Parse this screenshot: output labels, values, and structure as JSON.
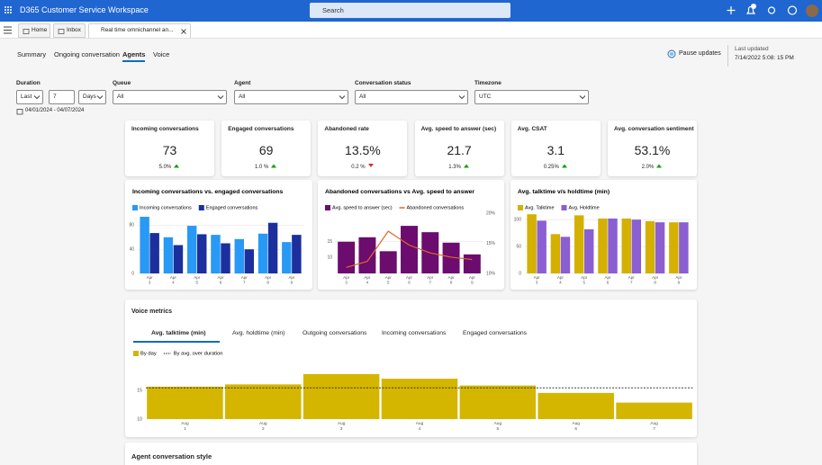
{
  "app": {
    "title": "D365 Customer Service Workspace",
    "search": "Search"
  },
  "tabs": [
    "Home",
    "Inbox",
    "Real time omnichannel an..."
  ],
  "nav": {
    "items": [
      "Summary",
      "Ongoing conversation",
      "Agents",
      "Voice"
    ],
    "active": 2
  },
  "status": {
    "pause": "Pause updates",
    "last_updated_label": "Last updated",
    "last_updated": "7/14/2022 5:08: 15 PM"
  },
  "filters": {
    "duration": {
      "label": "Duration",
      "mode": "Last",
      "count": "7",
      "unit": "Days"
    },
    "dropdowns": [
      {
        "label": "Queue",
        "value": "All"
      },
      {
        "label": "Agent",
        "value": "All"
      },
      {
        "label": "Conversation status",
        "value": "All"
      },
      {
        "label": "Timezone",
        "value": "UTC"
      }
    ],
    "date_range": "04/01/2024 - 04/07/2024"
  },
  "kpis": [
    {
      "title": "Incoming conversations",
      "value": "73",
      "change": "5.0%",
      "trend": "up"
    },
    {
      "title": "Engaged conversations",
      "value": "69",
      "change": "1.0 %",
      "trend": "up"
    },
    {
      "title": "Abandoned rate",
      "value": "13.5%",
      "change": "0.2 %",
      "trend": "down"
    },
    {
      "title": "Avg. speed to answer (sec)",
      "value": "21.7",
      "change": "1.3%",
      "trend": "up"
    },
    {
      "title": "Avg. CSAT",
      "value": "3.1",
      "change": "0.25%",
      "trend": "up"
    },
    {
      "title": "Avg. conversation sentiment",
      "value": "53.1%",
      "change": "2.0%",
      "trend": "up"
    }
  ],
  "charts": [
    {
      "type": "bar",
      "title": "Incoming conversations  vs. engaged conversations",
      "categories": [
        "Apr 3",
        "Apr 4",
        "Apr 5",
        "Apr 6",
        "Apr 7",
        "Apr 8",
        "Apr 9"
      ],
      "series": [
        {
          "name": "Incoming conversations",
          "color": "#2899f5",
          "values": [
            94,
            60,
            79,
            64,
            57,
            66,
            52
          ]
        },
        {
          "name": "Engaged conversations",
          "color": "#1c2f9e",
          "values": [
            67,
            47,
            65,
            50,
            40,
            84,
            64
          ]
        }
      ],
      "ylim": [
        0,
        100
      ],
      "yticks": [
        0,
        40,
        80
      ],
      "grid": true
    },
    {
      "type": "combo",
      "title": "Abandoned conversations vs Avg. speed to answer",
      "categories": [
        "Apr 3",
        "Apr 4",
        "Apr 5",
        "Apr 6",
        "Apr 7",
        "Apr 8",
        "Apr 9"
      ],
      "series": [
        {
          "name": "Avg. speed to answer (sec)",
          "color": "#6b0c6e",
          "values": [
            15,
            16.4,
            12,
            20,
            18,
            14.7,
            11
          ]
        },
        {
          "name": "Abandoned conversations",
          "color": "#e0682a",
          "axis": "y2",
          "values": [
            11,
            12,
            17,
            14.7,
            13.4,
            12.7,
            12.3
          ]
        }
      ],
      "ylim": [
        5,
        24
      ],
      "yticks": [
        10,
        15
      ],
      "y2lim": [
        10,
        20
      ],
      "y2ticks": [
        {
          "value": 10,
          "label": "10%"
        },
        {
          "value": 15,
          "label": "15%"
        },
        {
          "value": 20,
          "label": "20%"
        }
      ],
      "grid": true
    },
    {
      "type": "bar",
      "title": "Avg. talktime v/s holdtime (min)",
      "categories": [
        "Apr 3",
        "Apr 4",
        "Apr 5",
        "Apr 6",
        "Apr 7",
        "Apr 8",
        "Apr 9"
      ],
      "series": [
        {
          "name": "Avg. Talktime",
          "color": "#d4b000",
          "values": [
            110,
            73,
            108,
            102,
            102,
            97,
            95
          ]
        },
        {
          "name": "Avg. Holdtime",
          "color": "#8a5fd1",
          "values": [
            98,
            68,
            82,
            102,
            100,
            95,
            95
          ]
        }
      ],
      "ylim": [
        0,
        112
      ],
      "yticks": [
        0,
        50,
        100
      ],
      "grid": true
    }
  ],
  "voice": {
    "title": "Voice metrics",
    "tabs": [
      "Avg. talktime (min)",
      "Avg. holdtime (min)",
      "Outgoing conversations",
      "Incoming conversations",
      "Engaged conversations"
    ],
    "active": 0,
    "chart": {
      "type": "bar",
      "categories": [
        "Aug 1",
        "Aug 2",
        "Aug 3",
        "Aug 4",
        "Aug 5",
        "Aug 6",
        "Aug 7"
      ],
      "series": [
        {
          "name": "By day",
          "color": "#d4b600",
          "values": [
            15.7,
            16.1,
            17.9,
            17.1,
            15.9,
            14.6,
            12.9
          ]
        }
      ],
      "reference_line": {
        "name": "By avg. over duration",
        "value": 15.5
      },
      "ylim": [
        10,
        19
      ],
      "yticks": [
        10,
        15
      ],
      "grid": false
    }
  },
  "section": {
    "title": "Agent conversation style"
  }
}
